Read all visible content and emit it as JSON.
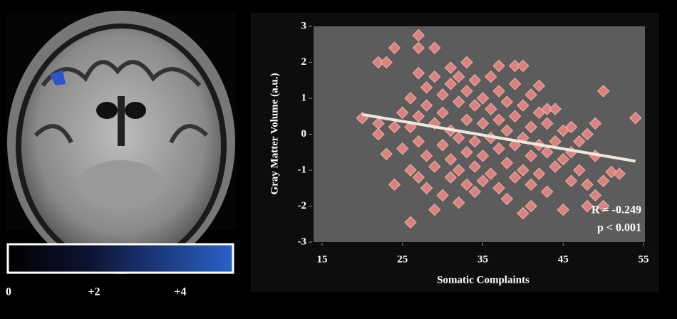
{
  "chart_data": {
    "type": "scatter",
    "xlabel": "Somatic Complaints",
    "ylabel": "Gray Matter Volume (a.u.)",
    "xlim": [
      15,
      55
    ],
    "xticks": [
      15,
      25,
      35,
      45,
      55
    ],
    "ylim": [
      -3,
      3
    ],
    "yticks": [
      -3,
      -2,
      -1,
      0,
      1,
      2,
      3
    ],
    "color": "#d9827e",
    "x": [
      20,
      22,
      23,
      24,
      22,
      22,
      23,
      24,
      24,
      26,
      27,
      27,
      29,
      29,
      50,
      54,
      51,
      50,
      49,
      48,
      45,
      40,
      41,
      37,
      39,
      40,
      42,
      43,
      33,
      31,
      25,
      25,
      26,
      26,
      26,
      27,
      27,
      27,
      27,
      28,
      28,
      28,
      28,
      29,
      29,
      29,
      30,
      30,
      30,
      30,
      31,
      31,
      31,
      31,
      32,
      32,
      32,
      32,
      32,
      33,
      33,
      33,
      33,
      34,
      34,
      34,
      34,
      34,
      35,
      35,
      35,
      35,
      36,
      36,
      36,
      36,
      37,
      37,
      37,
      37,
      38,
      38,
      38,
      38,
      39,
      39,
      39,
      39,
      40,
      40,
      40,
      41,
      41,
      41,
      41,
      42,
      42,
      42,
      43,
      43,
      43,
      44,
      44,
      44,
      45,
      45,
      46,
      46,
      46,
      47,
      47,
      48,
      48,
      49,
      49,
      50,
      52
    ],
    "values": [
      0.45,
      2.0,
      2.0,
      2.4,
      0.3,
      0,
      -0.55,
      -1.4,
      0.2,
      -2.45,
      2.75,
      2.4,
      2.4,
      -2.1,
      1.2,
      0.45,
      -1.05,
      -2.0,
      -1.7,
      -2.0,
      -2.1,
      -2.2,
      -2.0,
      1.9,
      1.9,
      1.9,
      1.35,
      0.7,
      2.0,
      1.85,
      0.6,
      -0.4,
      1.0,
      0.2,
      -1.0,
      1.7,
      0.5,
      -0.2,
      -1.2,
      1.3,
      0.8,
      -0.6,
      -1.5,
      1.6,
      0.3,
      -0.9,
      1.1,
      0.6,
      -0.3,
      -1.7,
      1.4,
      0.1,
      -0.7,
      -1.2,
      1.6,
      0.9,
      -0.1,
      -1.0,
      -1.9,
      1.2,
      0.4,
      -0.5,
      -1.4,
      1.5,
      0.8,
      -0.2,
      -0.9,
      -1.6,
      1.0,
      0.3,
      -0.6,
      -1.3,
      1.6,
      0.7,
      -0.1,
      -1.1,
      1.2,
      0.4,
      -0.4,
      -1.5,
      0.9,
      0.1,
      -0.8,
      -1.8,
      1.4,
      0.5,
      -0.3,
      -1.2,
      0.8,
      -0.1,
      -1.0,
      1.1,
      0.2,
      -0.6,
      -1.4,
      0.6,
      -0.3,
      -1.1,
      0.3,
      -0.5,
      -1.6,
      0.7,
      -0.2,
      -0.9,
      0.1,
      -0.7,
      0.2,
      -0.5,
      -1.3,
      -0.2,
      -1.0,
      0.0,
      -1.4,
      0.3,
      -0.6,
      -1.3,
      -1.1
    ],
    "trendline": {
      "x": [
        20,
        54
      ],
      "y": [
        0.55,
        -0.75
      ],
      "color": "#efe8da"
    },
    "annotations": [
      "R = -0.249",
      "p < 0.001"
    ]
  },
  "colorbar": {
    "labels": [
      "0",
      "+2",
      "+4"
    ]
  }
}
